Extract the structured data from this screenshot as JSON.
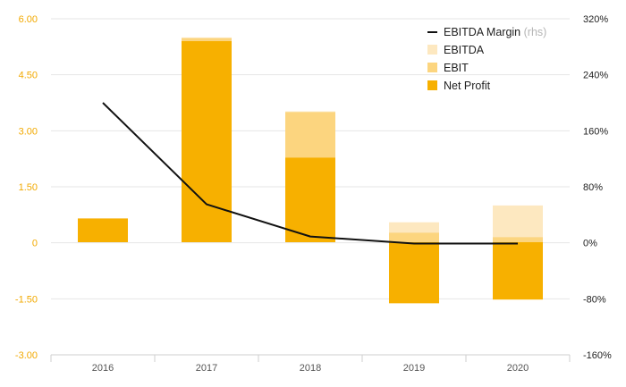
{
  "chart_data": {
    "type": "bar",
    "categories": [
      "2016",
      "2017",
      "2018",
      "2019",
      "2020"
    ],
    "series": [
      {
        "name": "Net Profit",
        "type": "bar",
        "axis": "left",
        "color": "#f7b000",
        "values": [
          0.65,
          5.4,
          2.28,
          -1.62,
          -1.52
        ]
      },
      {
        "name": "EBIT",
        "type": "bar",
        "axis": "left",
        "color": "#fcd57f",
        "values": [
          0.65,
          5.48,
          3.5,
          0.27,
          0.15
        ]
      },
      {
        "name": "EBITDA",
        "type": "bar",
        "axis": "left",
        "color": "#fde8c0",
        "values": [
          0.66,
          5.5,
          3.52,
          0.55,
          1.0
        ]
      },
      {
        "name": "EBITDA Margin",
        "name_suffix": "(rhs)",
        "type": "line",
        "axis": "right",
        "color": "#111111",
        "values": [
          200,
          55,
          9,
          -1,
          -1
        ]
      }
    ],
    "y_left": {
      "ylim": [
        -3.0,
        6.0
      ],
      "ticks": [
        6.0,
        4.5,
        3.0,
        1.5,
        0,
        -1.5,
        -3.0
      ],
      "tick_labels": [
        "6.00",
        "4.50",
        "3.00",
        "1.50",
        "0",
        "-1.50",
        "-3.00"
      ],
      "tick_color": "#f2a900"
    },
    "y_right": {
      "ylim": [
        -160,
        320
      ],
      "ticks": [
        320,
        240,
        160,
        80,
        0,
        -80,
        -160
      ],
      "tick_labels": [
        "320%",
        "240%",
        "160%",
        "80%",
        "0%",
        "-80%",
        "-160%"
      ]
    },
    "grid": true,
    "legend": {
      "position": "top-right",
      "order": [
        "EBITDA Margin",
        "EBITDA",
        "EBIT",
        "Net Profit"
      ]
    }
  }
}
